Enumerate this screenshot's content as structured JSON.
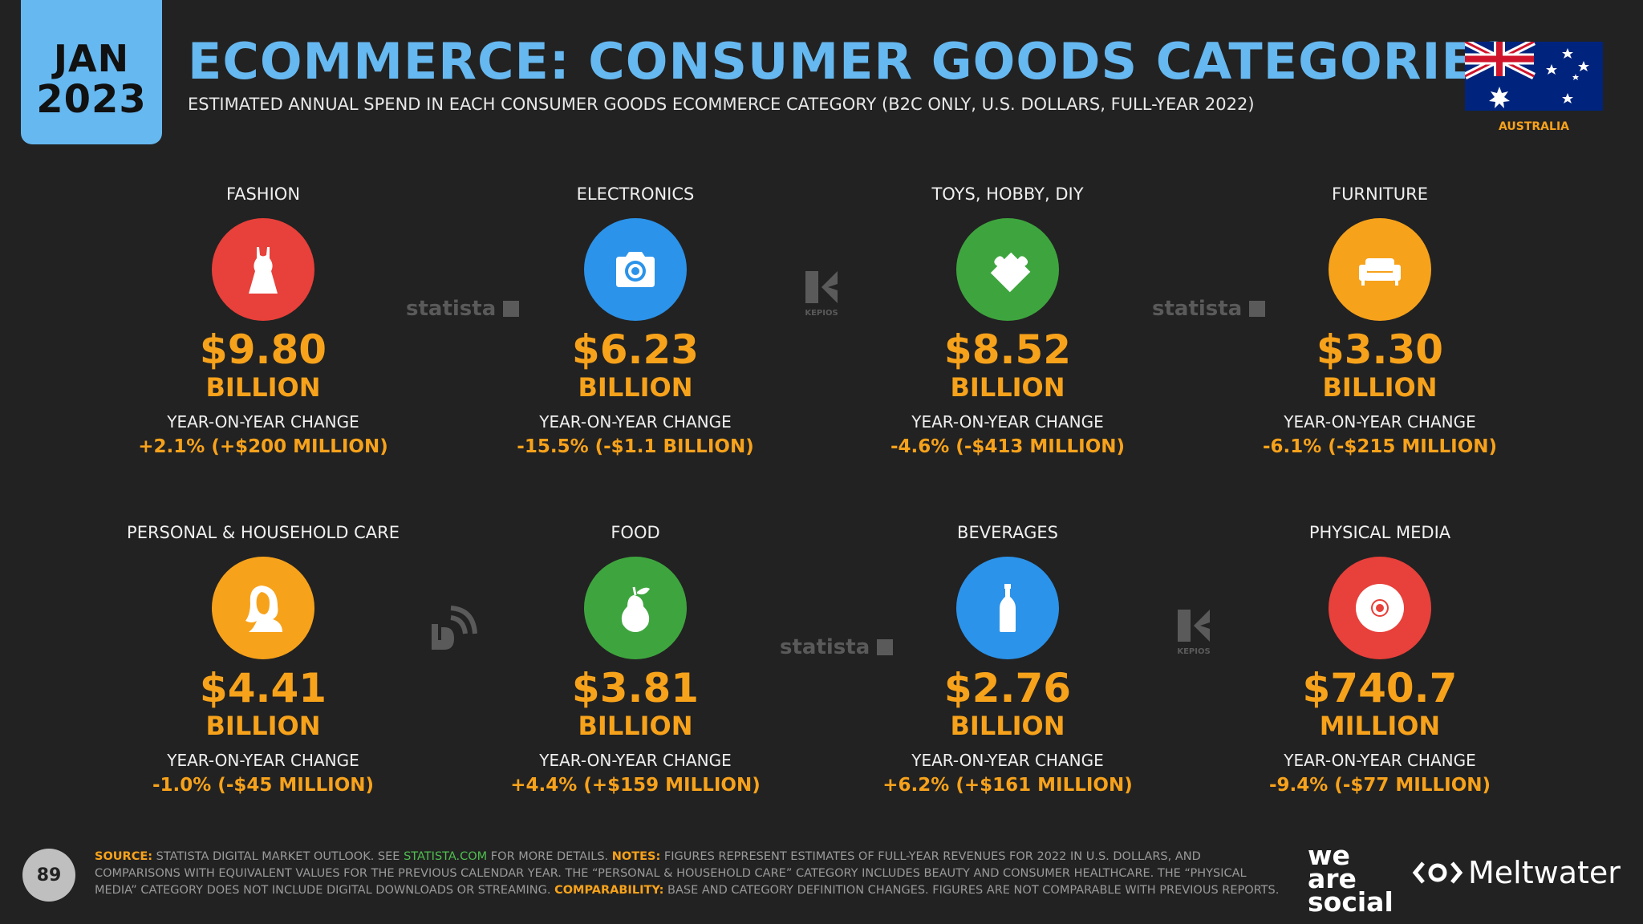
{
  "header": {
    "month": "JAN",
    "year": "2023",
    "title": "ECOMMERCE: CONSUMER GOODS CATEGORIES",
    "subtitle": "ESTIMATED ANNUAL SPEND IN EACH CONSUMER GOODS ECOMMERCE CATEGORY (B2C ONLY, U.S. DOLLARS, FULL-YEAR 2022)",
    "country": "AUSTRALIA"
  },
  "yoy_label": "YEAR-ON-YEAR CHANGE",
  "categories": [
    {
      "name": "FASHION",
      "value": "$9.80",
      "unit": "BILLION",
      "change": "+2.1% (+$200 MILLION)",
      "icon": "dress-icon",
      "color": "#e8403a"
    },
    {
      "name": "ELECTRONICS",
      "value": "$6.23",
      "unit": "BILLION",
      "change": "-15.5% (-$1.1 BILLION)",
      "icon": "camera-icon",
      "color": "#2b93ea"
    },
    {
      "name": "TOYS, HOBBY, DIY",
      "value": "$8.52",
      "unit": "BILLION",
      "change": "-4.6% (-$413 MILLION)",
      "icon": "puzzle-icon",
      "color": "#3ea53e"
    },
    {
      "name": "FURNITURE",
      "value": "$3.30",
      "unit": "BILLION",
      "change": "-6.1% (-$215 MILLION)",
      "icon": "sofa-icon",
      "color": "#f7a21b"
    },
    {
      "name": "PERSONAL & HOUSEHOLD CARE",
      "value": "$4.41",
      "unit": "BILLION",
      "change": "-1.0% (-$45 MILLION)",
      "icon": "woman-icon",
      "color": "#f7a21b"
    },
    {
      "name": "FOOD",
      "value": "$3.81",
      "unit": "BILLION",
      "change": "+4.4% (+$159 MILLION)",
      "icon": "pear-icon",
      "color": "#3ea53e"
    },
    {
      "name": "BEVERAGES",
      "value": "$2.76",
      "unit": "BILLION",
      "change": "+6.2% (+$161 MILLION)",
      "icon": "bottle-icon",
      "color": "#2b93ea"
    },
    {
      "name": "PHYSICAL MEDIA",
      "value": "$740.7",
      "unit": "MILLION",
      "change": "-9.4% (-$77 MILLION)",
      "icon": "disc-icon",
      "color": "#e8403a"
    }
  ],
  "watermarks": {
    "statista": "statista",
    "kepios": "KEPIOS"
  },
  "footer": {
    "page_number": "89",
    "source_key": "SOURCE:",
    "source_text": " STATISTA DIGITAL MARKET OUTLOOK. SEE ",
    "source_link": "STATISTA.COM",
    "source_text2": " FOR MORE DETAILS. ",
    "notes_key": "NOTES:",
    "notes_text": " FIGURES REPRESENT ESTIMATES OF FULL-YEAR REVENUES FOR 2022 IN U.S. DOLLARS, AND COMPARISONS WITH EQUIVALENT VALUES FOR THE PREVIOUS CALENDAR YEAR. THE “PERSONAL & HOUSEHOLD CARE” CATEGORY INCLUDES BEAUTY AND CONSUMER HEALTHCARE. THE “PHYSICAL MEDIA” CATEGORY DOES NOT INCLUDE DIGITAL DOWNLOADS OR STREAMING. ",
    "comparability_key": "COMPARABILITY:",
    "comparability_text": " BASE AND CATEGORY DEFINITION CHANGES. FIGURES ARE NOT COMPARABLE WITH PREVIOUS REPORTS."
  },
  "logos": {
    "we": "we",
    "are": "are",
    "social": "social",
    "meltwater": "Meltwater"
  }
}
